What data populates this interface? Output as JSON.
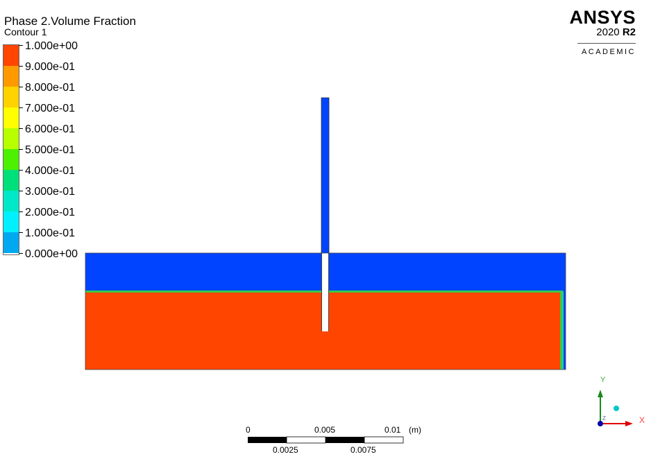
{
  "title": "Phase 2.Volume Fraction",
  "subtitle": "Contour 1",
  "legend": {
    "labels": [
      "1.000e+00",
      "9.000e-01",
      "8.000e-01",
      "7.000e-01",
      "6.000e-01",
      "5.000e-01",
      "4.000e-01",
      "3.000e-01",
      "2.000e-01",
      "1.000e-01",
      "0.000e+00"
    ],
    "colors": [
      "#ff4500",
      "#ff9900",
      "#ffd200",
      "#ffff00",
      "#b8ff00",
      "#4cf000",
      "#00e07a",
      "#00e8c8",
      "#00f0ff",
      "#00a8f0",
      "#0042ff"
    ]
  },
  "logo": {
    "brand": "ANSYS",
    "year": "2020",
    "release": "R2",
    "edition": "ACADEMIC"
  },
  "scale": {
    "top_labels": [
      "0",
      "0.005",
      "0.01"
    ],
    "unit": "(m)",
    "bottom_labels": [
      "0.0025",
      "0.0075"
    ]
  },
  "triad": {
    "x_label": "X",
    "y_label": "Y",
    "z_label": "Z"
  },
  "field_colors": {
    "phase1": "#0044ff",
    "phase2": "#ff4500",
    "interface": "#39c948"
  }
}
